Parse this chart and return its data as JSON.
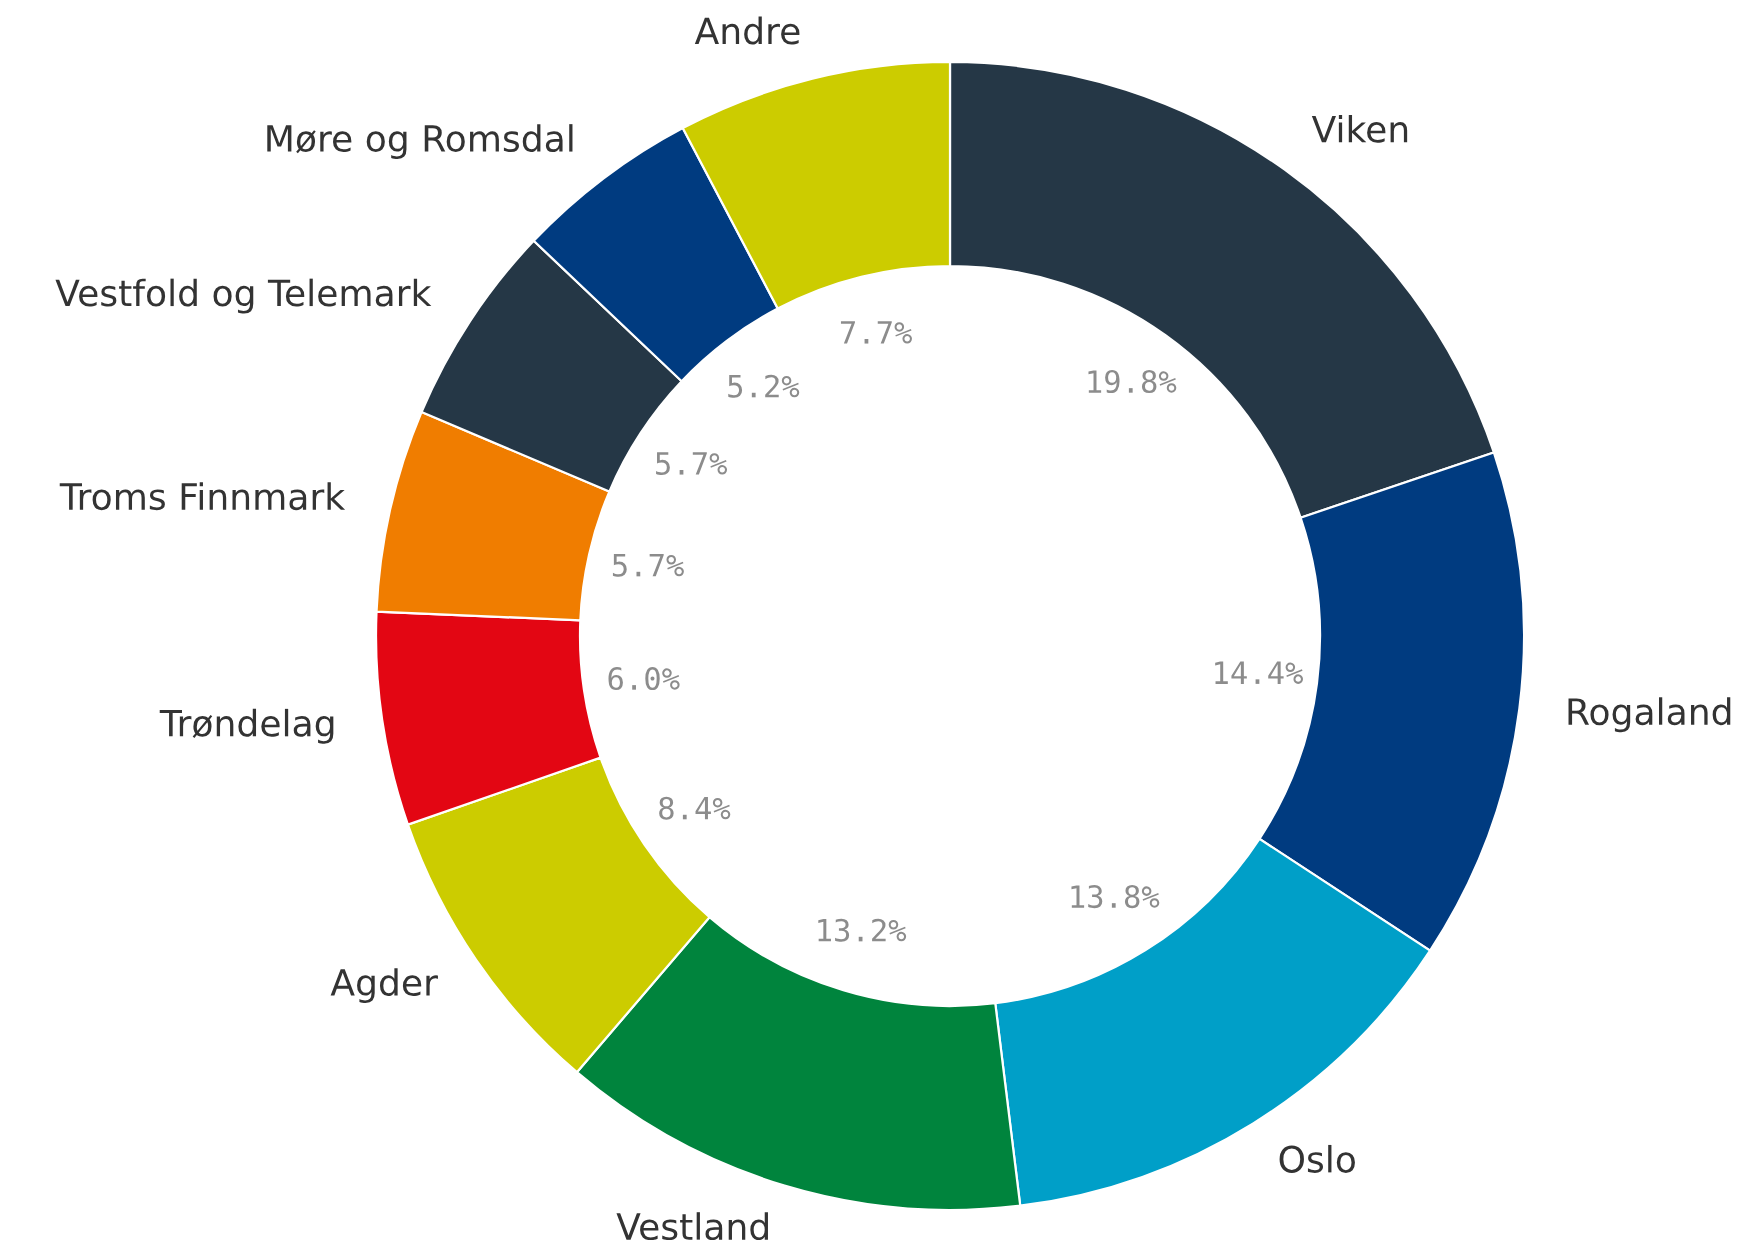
{
  "chart_data": {
    "type": "donut",
    "categories": [
      "Viken",
      "Rogaland",
      "Oslo",
      "Vestland",
      "Agder",
      "Trøndelag",
      "Troms Finnmark",
      "Vestfold og Telemark",
      "Møre og Romsdal",
      "Andre"
    ],
    "values": [
      19.8,
      14.4,
      13.8,
      13.2,
      8.4,
      6.0,
      5.7,
      5.7,
      5.2,
      7.7
    ],
    "colors": [
      "#253746",
      "#003b80",
      "#009fc8",
      "#00843d",
      "#cccc00",
      "#e30613",
      "#f07d00",
      "#253746",
      "#003b80",
      "#cccc00"
    ],
    "value_labels": [
      "19.8%",
      "14.4%",
      "13.8%",
      "13.2%",
      "8.4%",
      "6.0%",
      "5.7%",
      "5.7%",
      "5.2%",
      "7.7%"
    ],
    "legend": false
  }
}
